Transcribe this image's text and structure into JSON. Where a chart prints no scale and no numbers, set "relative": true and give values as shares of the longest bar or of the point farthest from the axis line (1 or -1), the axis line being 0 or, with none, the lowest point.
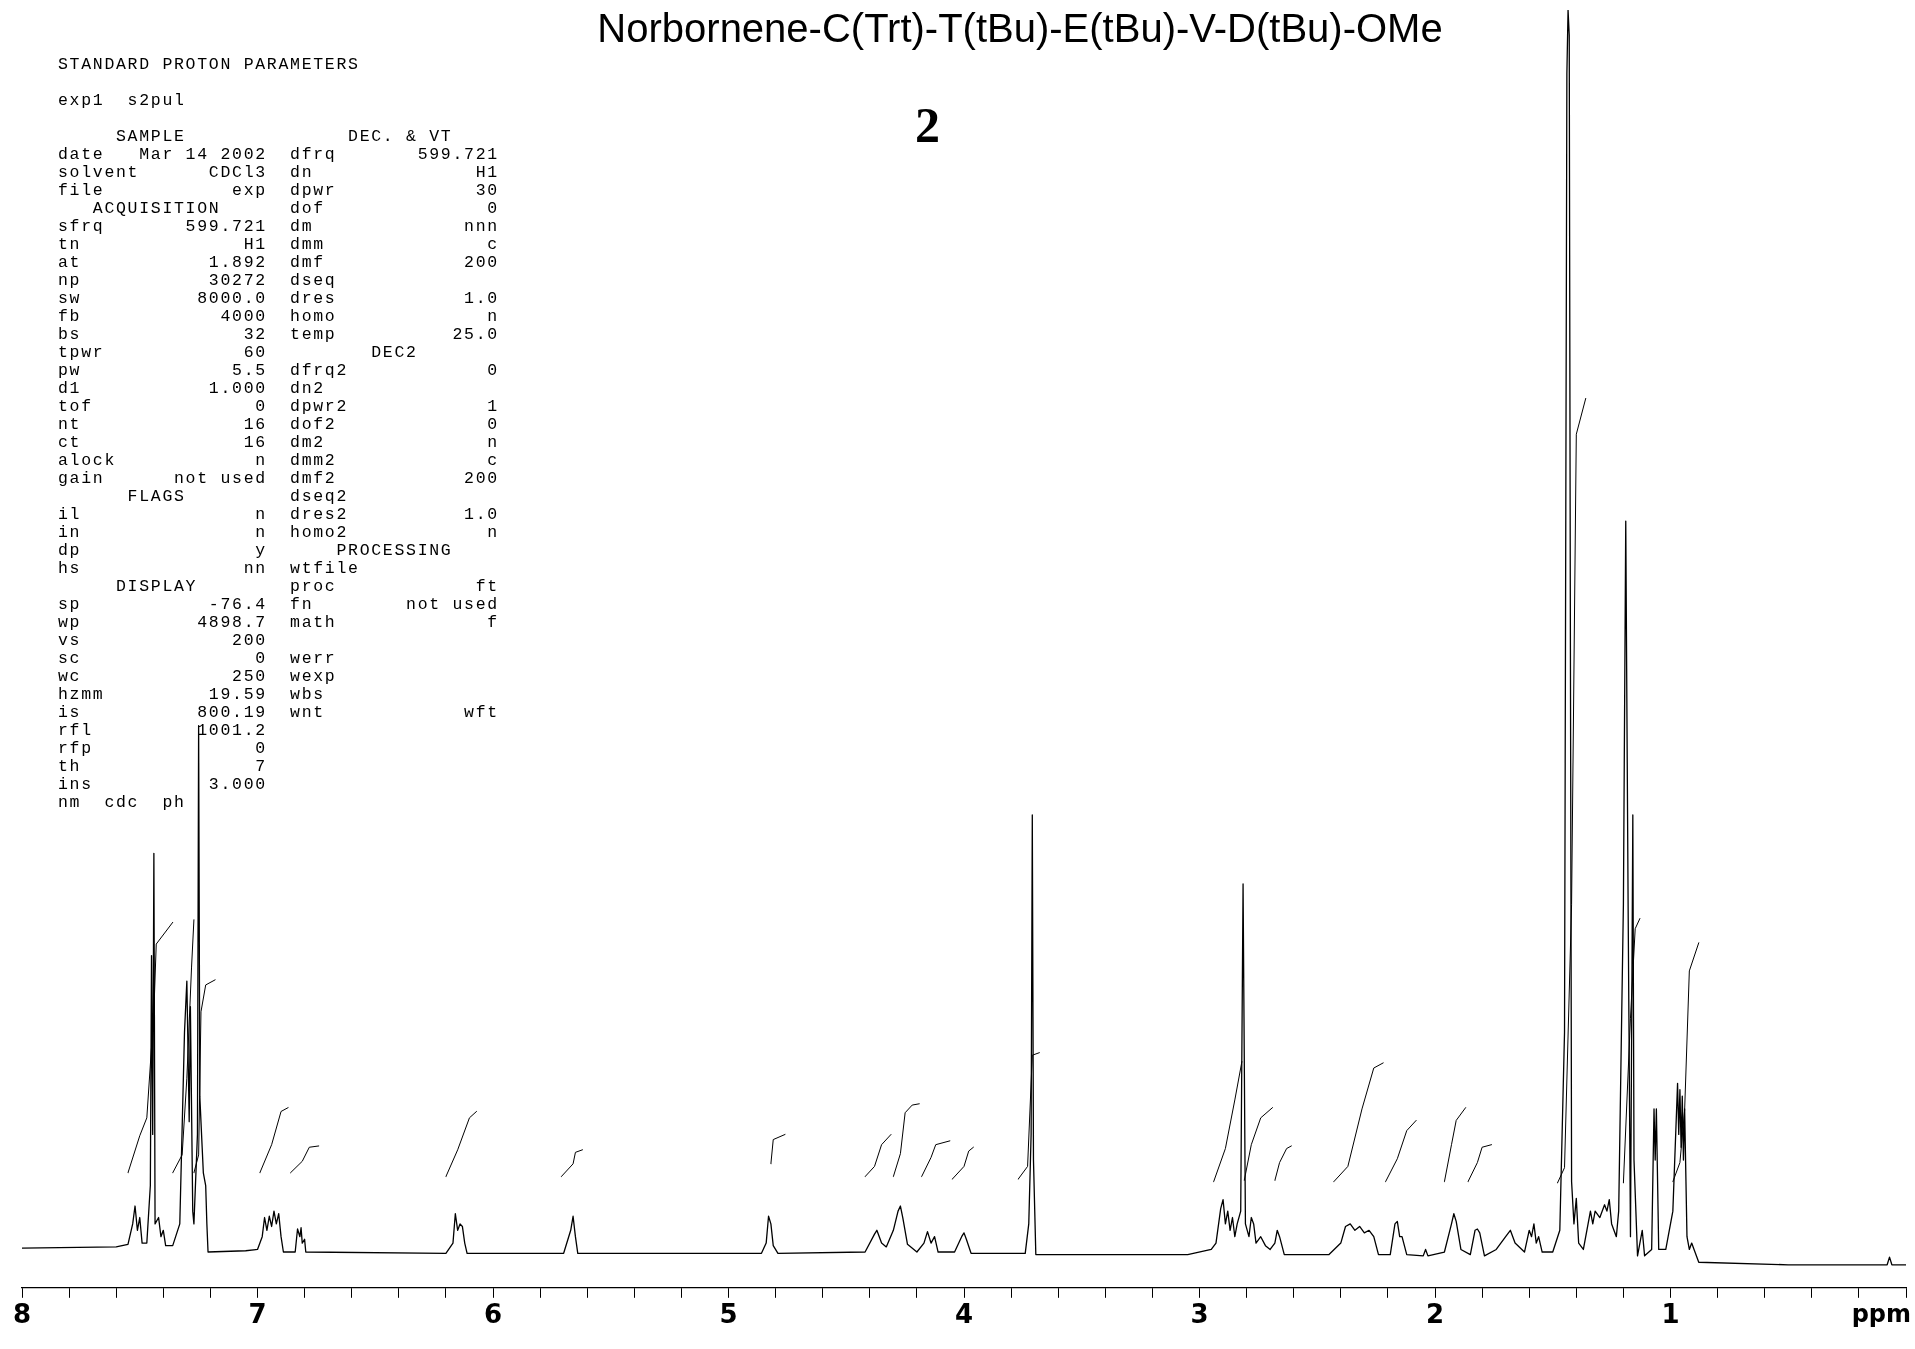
{
  "chart_data": {
    "type": "line",
    "title": "Norbornene-C(Trt)-T(tBu)-E(tBu)-V-D(tBu)-OMe",
    "xlabel": "ppm",
    "relative": true,
    "tick_labels": "x",
    "xlim": [
      8,
      0
    ],
    "xticks": [
      8,
      {
        "value": 7.8,
        "label": null
      },
      {
        "value": 7.6,
        "label": null
      },
      {
        "value": 7.4,
        "label": null
      },
      {
        "value": 7.2,
        "label": null
      },
      7,
      {
        "value": 6.8,
        "label": null
      },
      {
        "value": 6.6,
        "label": null
      },
      {
        "value": 6.4,
        "label": null
      },
      {
        "value": 6.2,
        "label": null
      },
      6,
      {
        "value": 5.8,
        "label": null
      },
      {
        "value": 5.6,
        "label": null
      },
      {
        "value": 5.4,
        "label": null
      },
      {
        "value": 5.2,
        "label": null
      },
      5,
      {
        "value": 4.8,
        "label": null
      },
      {
        "value": 4.6,
        "label": null
      },
      {
        "value": 4.4,
        "label": null
      },
      {
        "value": 4.2,
        "label": null
      },
      4,
      {
        "value": 3.8,
        "label": null
      },
      {
        "value": 3.6,
        "label": null
      },
      {
        "value": 3.4,
        "label": null
      },
      {
        "value": 3.2,
        "label": null
      },
      3,
      {
        "value": 2.8,
        "label": null
      },
      {
        "value": 2.6,
        "label": null
      },
      {
        "value": 2.4,
        "label": null
      },
      {
        "value": 2.2,
        "label": null
      },
      2,
      {
        "value": 1.8,
        "label": null
      },
      {
        "value": 1.6,
        "label": null
      },
      {
        "value": 1.4,
        "label": null
      },
      {
        "value": 1.2,
        "label": null
      },
      1,
      {
        "value": 0.8,
        "label": null
      },
      {
        "value": 0.6,
        "label": null
      },
      {
        "value": 0.4,
        "label": null
      },
      {
        "value": 0.2,
        "label": null
      },
      {
        "value": 0,
        "label": null
      }
    ],
    "annotations": [
      "2",
      "STANDARD PROTON PARAMETERS",
      "exp1  s2pul",
      "     SAMPLE              DEC. & VT",
      "date   Mar 14 2002  dfrq       599.721",
      "solvent      CDCl3  dn              H1",
      "file           exp  dpwr            30",
      "   ACQUISITION      dof              0",
      "sfrq       599.721  dm             nnn",
      "tn              H1  dmm              c",
      "at           1.892  dmf            200",
      "np           30272  dseq",
      "sw          8000.0  dres           1.0",
      "fb            4000  homo             n",
      "bs              32  temp          25.0",
      "tpwr            60         DEC2",
      "pw             5.5  dfrq2            0",
      "d1           1.000  dn2",
      "tof              0  dpwr2            1",
      "nt              16  dof2             0",
      "ct              16  dm2              n",
      "alock            n  dmm2             c",
      "gain      not used  dmf2           200",
      "      FLAGS         dseq2",
      "il               n  dres2          1.0",
      "in               n  homo2            n",
      "dp               y      PROCESSING",
      "hs              nn  wtfile",
      "     DISPLAY        proc            ft",
      "sp           -76.4  fn        not used",
      "wp          4898.7  math             f",
      "vs             200",
      "sc               0  werr",
      "wc             250  wexp",
      "hzmm         19.59  wbs",
      "is          800.19  wnt            wft",
      "rfl         1001.2",
      "rfp              0",
      "th               7",
      "ins          3.000",
      "nm  cdc  ph"
    ],
    "series": [
      {
        "type": "line",
        "color": "#000000",
        "x": [
          8.0,
          7.6,
          7.55,
          7.53,
          7.52,
          7.51,
          7.5,
          7.49,
          7.47,
          7.455,
          7.45,
          7.445,
          7.44,
          7.435,
          7.42,
          7.41,
          7.4,
          7.39,
          7.36,
          7.33,
          7.31,
          7.3,
          7.29,
          7.285,
          7.275,
          7.27,
          7.255,
          7.25,
          7.245,
          7.235,
          7.23,
          7.22,
          7.215,
          7.21,
          7.05,
          7.0,
          6.98,
          6.97,
          6.96,
          6.95,
          6.94,
          6.93,
          6.92,
          6.91,
          6.9,
          6.89,
          6.84,
          6.83,
          6.82,
          6.815,
          6.81,
          6.8,
          6.795,
          6.2,
          6.17,
          6.16,
          6.15,
          6.14,
          6.13,
          6.12,
          6.11,
          5.7,
          5.67,
          5.66,
          5.65,
          5.64,
          4.86,
          4.84,
          4.83,
          4.82,
          4.81,
          4.79,
          4.42,
          4.38,
          4.37,
          4.35,
          4.33,
          4.3,
          4.28,
          4.27,
          4.26,
          4.24,
          4.2,
          4.17,
          4.155,
          4.14,
          4.125,
          4.11,
          4.04,
          4.01,
          4.0,
          3.99,
          3.97,
          3.74,
          3.725,
          3.715,
          3.71,
          3.705,
          3.695,
          3.05,
          2.95,
          2.93,
          2.91,
          2.9,
          2.89,
          2.88,
          2.87,
          2.86,
          2.85,
          2.84,
          2.825,
          2.815,
          2.805,
          2.79,
          2.78,
          2.77,
          2.76,
          2.74,
          2.72,
          2.7,
          2.68,
          2.67,
          2.66,
          2.64,
          2.45,
          2.4,
          2.38,
          2.36,
          2.34,
          2.32,
          2.3,
          2.28,
          2.26,
          2.24,
          2.19,
          2.17,
          2.16,
          2.15,
          2.14,
          2.12,
          2.05,
          2.04,
          2.03,
          1.96,
          1.93,
          1.92,
          1.91,
          1.89,
          1.85,
          1.83,
          1.82,
          1.81,
          1.79,
          1.74,
          1.7,
          1.68,
          1.66,
          1.62,
          1.6,
          1.59,
          1.58,
          1.57,
          1.56,
          1.545,
          1.5,
          1.47,
          1.45,
          1.44,
          1.435,
          1.43,
          1.425,
          1.42,
          1.41,
          1.4,
          1.39,
          1.37,
          1.34,
          1.33,
          1.32,
          1.3,
          1.28,
          1.27,
          1.26,
          1.25,
          1.23,
          1.22,
          1.2,
          1.19,
          1.18,
          1.17,
          1.165,
          1.16,
          1.155,
          1.14,
          1.12,
          1.11,
          1.08,
          1.07,
          1.065,
          1.06,
          1.05,
          1.02,
          0.99,
          0.97,
          0.965,
          0.96,
          0.955,
          0.95,
          0.945,
          0.94,
          0.93,
          0.92,
          0.91,
          0.9,
          0.88,
          0.5,
          0.08,
          0.07,
          0.06,
          0.0
        ],
        "values": [
          0.031,
          0.032,
          0.034,
          0.05,
          0.064,
          0.045,
          0.055,
          0.035,
          0.035,
          0.08,
          0.26,
          0.12,
          0.34,
          0.05,
          0.055,
          0.04,
          0.045,
          0.033,
          0.033,
          0.05,
          0.2,
          0.24,
          0.13,
          0.22,
          0.06,
          0.05,
          0.12,
          0.44,
          0.15,
          0.11,
          0.09,
          0.08,
          0.05,
          0.028,
          0.029,
          0.03,
          0.04,
          0.055,
          0.045,
          0.056,
          0.048,
          0.06,
          0.05,
          0.058,
          0.04,
          0.028,
          0.028,
          0.046,
          0.04,
          0.047,
          0.035,
          0.038,
          0.028,
          0.027,
          0.035,
          0.058,
          0.045,
          0.05,
          0.048,
          0.035,
          0.027,
          0.027,
          0.045,
          0.056,
          0.04,
          0.027,
          0.027,
          0.035,
          0.056,
          0.05,
          0.033,
          0.027,
          0.028,
          0.042,
          0.045,
          0.035,
          0.032,
          0.045,
          0.06,
          0.064,
          0.055,
          0.034,
          0.028,
          0.035,
          0.044,
          0.035,
          0.04,
          0.028,
          0.028,
          0.04,
          0.043,
          0.038,
          0.027,
          0.027,
          0.05,
          0.12,
          0.37,
          0.1,
          0.026,
          0.026,
          0.03,
          0.035,
          0.062,
          0.069,
          0.05,
          0.06,
          0.045,
          0.055,
          0.04,
          0.05,
          0.06,
          0.316,
          0.05,
          0.04,
          0.055,
          0.05,
          0.035,
          0.04,
          0.033,
          0.03,
          0.035,
          0.045,
          0.04,
          0.026,
          0.026,
          0.035,
          0.048,
          0.05,
          0.045,
          0.048,
          0.043,
          0.045,
          0.04,
          0.026,
          0.026,
          0.05,
          0.052,
          0.04,
          0.04,
          0.026,
          0.025,
          0.03,
          0.025,
          0.028,
          0.05,
          0.058,
          0.052,
          0.03,
          0.026,
          0.045,
          0.046,
          0.043,
          0.025,
          0.03,
          0.04,
          0.045,
          0.035,
          0.028,
          0.045,
          0.04,
          0.05,
          0.035,
          0.04,
          0.028,
          0.028,
          0.045,
          0.2,
          0.95,
          1.0,
          0.98,
          0.5,
          0.083,
          0.05,
          0.07,
          0.035,
          0.03,
          0.06,
          0.05,
          0.06,
          0.055,
          0.065,
          0.06,
          0.069,
          0.05,
          0.04,
          0.06,
          0.3,
          0.6,
          0.3,
          0.04,
          0.2,
          0.37,
          0.1,
          0.025,
          0.045,
          0.025,
          0.03,
          0.14,
          0.1,
          0.14,
          0.03,
          0.03,
          0.06,
          0.16,
          0.12,
          0.155,
          0.11,
          0.15,
          0.1,
          0.14,
          0.04,
          0.03,
          0.035,
          0.03,
          0.02,
          0.018,
          0.018,
          0.024,
          0.018,
          0.018
        ]
      },
      {
        "type": "line",
        "color": "#000000",
        "x": [
          7.55,
          7.5,
          7.47,
          7.44,
          7.43,
          7.36
        ],
        "values": [
          0.09,
          0.119,
          0.133,
          0.216,
          0.269,
          0.286
        ]
      },
      {
        "type": "line",
        "color": "#000000",
        "x": [
          7.36,
          7.32,
          7.3,
          7.28,
          7.27
        ],
        "values": [
          0.09,
          0.104,
          0.164,
          0.251,
          0.288
        ]
      },
      {
        "type": "line",
        "color": "#000000",
        "x": [
          7.27,
          7.25,
          7.24,
          7.22,
          7.18
        ],
        "values": [
          0.09,
          0.104,
          0.216,
          0.237,
          0.241
        ]
      },
      {
        "type": "line",
        "color": "#000000",
        "x": [
          6.99,
          6.94,
          6.9,
          6.87
        ],
        "values": [
          0.09,
          0.112,
          0.138,
          0.141
        ]
      },
      {
        "type": "line",
        "color": "#000000",
        "x": [
          6.86,
          6.81,
          6.78,
          6.74
        ],
        "values": [
          0.09,
          0.099,
          0.11,
          0.111
        ]
      },
      {
        "type": "line",
        "color": "#000000",
        "x": [
          6.2,
          6.15,
          6.1,
          6.07
        ],
        "values": [
          0.087,
          0.108,
          0.133,
          0.138
        ]
      },
      {
        "type": "line",
        "color": "#000000",
        "x": [
          5.71,
          5.66,
          5.65,
          5.62
        ],
        "values": [
          0.087,
          0.097,
          0.106,
          0.108
        ]
      },
      {
        "type": "line",
        "color": "#000000",
        "x": [
          4.82,
          4.81,
          4.76
        ],
        "values": [
          0.097,
          0.116,
          0.12
        ]
      },
      {
        "type": "line",
        "color": "#000000",
        "x": [
          4.42,
          4.38,
          4.35,
          4.31
        ],
        "values": [
          0.087,
          0.095,
          0.112,
          0.12
        ]
      },
      {
        "type": "line",
        "color": "#000000",
        "x": [
          4.3,
          4.27,
          4.25,
          4.22,
          4.19
        ],
        "values": [
          0.087,
          0.105,
          0.137,
          0.143,
          0.144
        ]
      },
      {
        "type": "line",
        "color": "#000000",
        "x": [
          4.18,
          4.14,
          4.12,
          4.06
        ],
        "values": [
          0.087,
          0.102,
          0.112,
          0.115
        ]
      },
      {
        "type": "line",
        "color": "#000000",
        "x": [
          4.05,
          4.0,
          3.98,
          3.96
        ],
        "values": [
          0.085,
          0.095,
          0.107,
          0.11
        ]
      },
      {
        "type": "line",
        "color": "#000000",
        "x": [
          3.77,
          3.73,
          3.71,
          3.68
        ],
        "values": [
          0.085,
          0.095,
          0.182,
          0.184
        ]
      },
      {
        "type": "line",
        "color": "#000000",
        "x": [
          2.94,
          2.89,
          2.85,
          2.82
        ],
        "values": [
          0.083,
          0.109,
          0.147,
          0.177
        ]
      },
      {
        "type": "line",
        "color": "#000000",
        "x": [
          2.81,
          2.78,
          2.74,
          2.69
        ],
        "values": [
          0.084,
          0.112,
          0.133,
          0.141
        ]
      },
      {
        "type": "line",
        "color": "#000000",
        "x": [
          2.68,
          2.66,
          2.63,
          2.61
        ],
        "values": [
          0.084,
          0.098,
          0.109,
          0.111
        ]
      },
      {
        "type": "line",
        "color": "#000000",
        "x": [
          2.43,
          2.37,
          2.31,
          2.26,
          2.22
        ],
        "values": [
          0.083,
          0.095,
          0.14,
          0.172,
          0.176
        ]
      },
      {
        "type": "line",
        "color": "#000000",
        "x": [
          2.21,
          2.16,
          2.12,
          2.08
        ],
        "values": [
          0.083,
          0.101,
          0.123,
          0.131
        ]
      },
      {
        "type": "line",
        "color": "#000000",
        "x": [
          1.96,
          1.93,
          1.91,
          1.87
        ],
        "values": [
          0.083,
          0.112,
          0.131,
          0.141
        ]
      },
      {
        "type": "line",
        "color": "#000000",
        "x": [
          1.86,
          1.82,
          1.8,
          1.76
        ],
        "values": [
          0.083,
          0.098,
          0.11,
          0.112
        ]
      },
      {
        "type": "line",
        "color": "#000000",
        "x": [
          1.48,
          1.45,
          1.42,
          1.4,
          1.36
        ],
        "values": [
          0.082,
          0.094,
          0.3,
          0.668,
          0.696
        ]
      },
      {
        "type": "line",
        "color": "#000000",
        "x": [
          1.2,
          1.17,
          1.15,
          1.13
        ],
        "values": [
          0.082,
          0.211,
          0.281,
          0.289
        ]
      },
      {
        "type": "line",
        "color": "#000000",
        "x": [
          0.99,
          0.96,
          0.94,
          0.92,
          0.88
        ],
        "values": [
          0.083,
          0.098,
          0.139,
          0.248,
          0.27
        ]
      }
    ]
  }
}
